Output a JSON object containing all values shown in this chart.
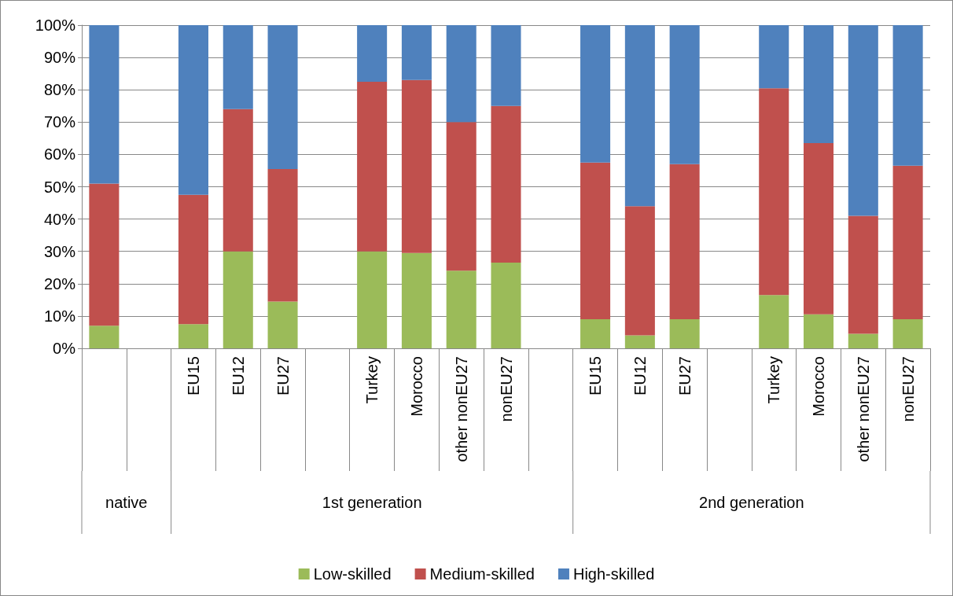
{
  "chart_data": {
    "type": "bar",
    "stacked": true,
    "categories": [
      null,
      null,
      "EU15",
      "EU12",
      "EU27",
      null,
      "Turkey",
      "Morocco",
      "other nonEU27",
      "nonEU27",
      null,
      "EU15",
      "EU12",
      "EU27",
      null,
      "Turkey",
      "Morocco",
      "other nonEU27",
      "nonEU27"
    ],
    "series": [
      {
        "name": "Low-skilled",
        "color": "#9bbb59",
        "values": [
          7,
          null,
          7.5,
          30,
          14.5,
          null,
          30,
          29.5,
          24,
          26.5,
          null,
          9,
          4,
          9,
          null,
          16.5,
          10.5,
          4.5,
          9
        ]
      },
      {
        "name": "Medium-skilled",
        "color": "#c0504d",
        "values": [
          44,
          null,
          40,
          44,
          41,
          null,
          52.5,
          53.5,
          46,
          48.5,
          null,
          48.5,
          40,
          48,
          null,
          64,
          53,
          36.5,
          47.5
        ]
      },
      {
        "name": "High-skilled",
        "color": "#4f81bd",
        "values": [
          49,
          null,
          52.5,
          26,
          44.5,
          null,
          17.5,
          17,
          30,
          25,
          null,
          42.5,
          56,
          43,
          null,
          19.5,
          36.5,
          59,
          43.5
        ]
      }
    ],
    "ylim": [
      0,
      100
    ],
    "yticks": [
      {
        "value": 0,
        "label": "0%"
      },
      {
        "value": 10,
        "label": "10%"
      },
      {
        "value": 20,
        "label": "20%"
      },
      {
        "value": 30,
        "label": "30%"
      },
      {
        "value": 40,
        "label": "40%"
      },
      {
        "value": 50,
        "label": "50%"
      },
      {
        "value": 60,
        "label": "60%"
      },
      {
        "value": 70,
        "label": "70%"
      },
      {
        "value": 80,
        "label": "80%"
      },
      {
        "value": 90,
        "label": "90%"
      },
      {
        "value": 100,
        "label": "100%"
      }
    ],
    "annotations": [
      "native",
      "1st generation",
      "2nd generation"
    ],
    "grid": "y",
    "legend": "bottom"
  }
}
